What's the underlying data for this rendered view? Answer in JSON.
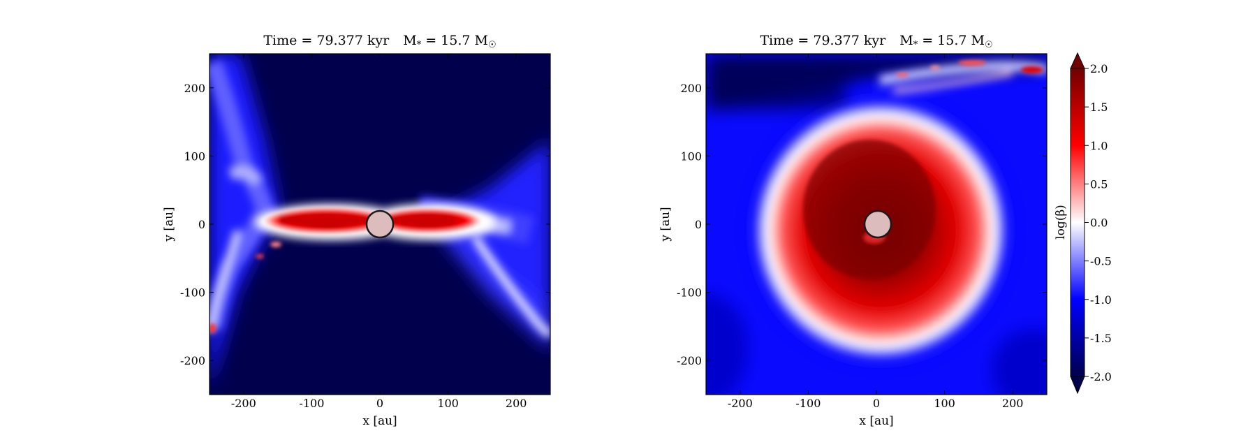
{
  "chart_data": {
    "type": "heatmap",
    "colormap": {
      "label": "log(β)",
      "range": [
        -2.0,
        2.0
      ],
      "ticks": [
        2.0,
        1.5,
        1.0,
        0.5,
        0.0,
        -0.5,
        -1.0,
        -1.5,
        -2.0
      ],
      "tick_labels": [
        "2.0",
        "1.5",
        "1.0",
        "0.5",
        "0.0",
        "-0.5",
        "-1.0",
        "-1.5",
        "-2.0"
      ],
      "colors": {
        "low": "#00004d",
        "mid_low": "#0000ff",
        "mid": "#ffffff",
        "mid_high": "#ff0000",
        "high": "#730000"
      }
    },
    "panels": [
      {
        "title_time": "Time = 79.377 kyr",
        "title_mass": "M",
        "title_mass_sub": "*",
        "title_mass_value": " = 15.7 M",
        "title_mass_sun": "☉",
        "xlabel": "x [au]",
        "ylabel": "y [au]",
        "xlim": [
          -250,
          250
        ],
        "ylim": [
          -250,
          250
        ],
        "xticks": [
          -200,
          -100,
          0,
          100,
          200
        ],
        "yticks": [
          200,
          100,
          0,
          -100,
          -200
        ],
        "xtick_labels": [
          "-200",
          "-100",
          "0",
          "100",
          "200"
        ],
        "ytick_labels": [
          "200",
          "100",
          "0",
          "-100",
          "-200"
        ],
        "view": "edge-on",
        "sink_radius_au": 20
      },
      {
        "title_time": "Time = 79.377 kyr",
        "title_mass": "M",
        "title_mass_sub": "*",
        "title_mass_value": " = 15.7 M",
        "title_mass_sun": "☉",
        "xlabel": "x [au]",
        "ylabel": "y [au]",
        "xlim": [
          -250,
          250
        ],
        "ylim": [
          -250,
          250
        ],
        "xticks": [
          -200,
          -100,
          0,
          100,
          200
        ],
        "yticks": [
          200,
          100,
          0,
          -100,
          -200
        ],
        "xtick_labels": [
          "-200",
          "-100",
          "0",
          "100",
          "200"
        ],
        "ytick_labels": [
          "200",
          "100",
          "0",
          "-100",
          "-200"
        ],
        "view": "face-on",
        "sink_radius_au": 20
      }
    ]
  }
}
